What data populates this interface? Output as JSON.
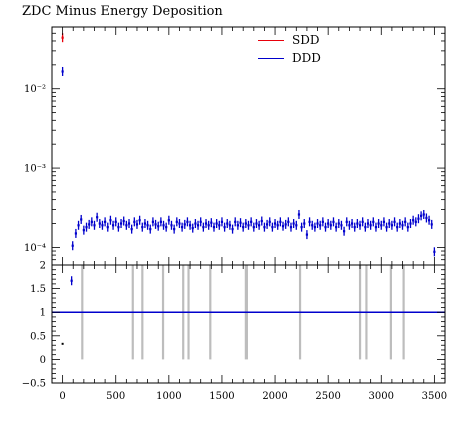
{
  "chart_data": {
    "title": "ZDC Minus Energy Deposition",
    "type": "scatter",
    "legend_placement": "top-right",
    "colors": {
      "sdd": "#e8000b",
      "ddd": "#0000cc",
      "ratio_band": "#bdbdbd",
      "ratio_line": "#0000cc"
    },
    "legend": [
      {
        "key": "sdd",
        "label": "SDD"
      },
      {
        "key": "ddd",
        "label": "DDD"
      }
    ],
    "xlim": [
      -100,
      3600
    ],
    "x_ticks": [
      0,
      500,
      1000,
      1500,
      2000,
      2500,
      3000,
      3500
    ],
    "x_tick_labels": [
      "0",
      "500",
      "1000",
      "1500",
      "2000",
      "2500",
      "3000",
      "3500"
    ],
    "main_panel": {
      "yscale": "log",
      "ylim": [
        6e-05,
        0.06
      ],
      "y_ticks": [
        0.0001,
        0.001,
        0.01
      ],
      "y_tick_labels": [
        "10⁻⁴",
        "10⁻³",
        "10⁻²"
      ],
      "series": [
        {
          "name": "SDD",
          "color_key": "sdd",
          "points": [
            [
              0,
              0.044
            ]
          ]
        },
        {
          "name": "DDD",
          "color_key": "ddd",
          "points": [
            [
              0,
              0.0165
            ],
            [
              85,
              3.8e-05
            ],
            [
              95,
              0.000105
            ],
            [
              125,
              0.00015
            ],
            [
              150,
              0.00019
            ],
            [
              175,
              0.000225
            ],
            [
              200,
              0.000165
            ],
            [
              225,
              0.00018
            ],
            [
              250,
              0.000195
            ],
            [
              275,
              0.00021
            ],
            [
              300,
              0.00019
            ],
            [
              325,
              0.00024
            ],
            [
              350,
              0.0002
            ],
            [
              375,
              0.00019
            ],
            [
              400,
              0.00021
            ],
            [
              425,
              0.00018
            ],
            [
              450,
              0.00022
            ],
            [
              475,
              0.00019
            ],
            [
              500,
              0.00021
            ],
            [
              525,
              0.00018
            ],
            [
              550,
              0.0002
            ],
            [
              575,
              0.000215
            ],
            [
              600,
              0.00019
            ],
            [
              625,
              0.0002
            ],
            [
              650,
              0.00017
            ],
            [
              675,
              0.00021
            ],
            [
              700,
              0.000195
            ],
            [
              725,
              0.00022
            ],
            [
              750,
              0.00018
            ],
            [
              775,
              0.0002
            ],
            [
              800,
              0.00019
            ],
            [
              825,
              0.00017
            ],
            [
              850,
              0.00021
            ],
            [
              875,
              0.000195
            ],
            [
              900,
              0.000185
            ],
            [
              925,
              0.00021
            ],
            [
              950,
              0.00019
            ],
            [
              975,
              0.00018
            ],
            [
              1000,
              0.00022
            ],
            [
              1025,
              0.00019
            ],
            [
              1050,
              0.00017
            ],
            [
              1075,
              0.00021
            ],
            [
              1100,
              0.0002
            ],
            [
              1125,
              0.00018
            ],
            [
              1150,
              0.000195
            ],
            [
              1175,
              0.00021
            ],
            [
              1200,
              0.00019
            ],
            [
              1225,
              0.000175
            ],
            [
              1250,
              0.0002
            ],
            [
              1275,
              0.00019
            ],
            [
              1300,
              0.00021
            ],
            [
              1325,
              0.00018
            ],
            [
              1350,
              0.0002
            ],
            [
              1375,
              0.00019
            ],
            [
              1400,
              0.000205
            ],
            [
              1425,
              0.00018
            ],
            [
              1450,
              0.0002
            ],
            [
              1475,
              0.00019
            ],
            [
              1500,
              0.00021
            ],
            [
              1525,
              0.00018
            ],
            [
              1550,
              0.0002
            ],
            [
              1575,
              0.00019
            ],
            [
              1600,
              0.00017
            ],
            [
              1625,
              0.00021
            ],
            [
              1650,
              0.00019
            ],
            [
              1675,
              0.000205
            ],
            [
              1700,
              0.00018
            ],
            [
              1725,
              0.0002
            ],
            [
              1750,
              0.00019
            ],
            [
              1775,
              0.00021
            ],
            [
              1800,
              0.00018
            ],
            [
              1825,
              0.0002
            ],
            [
              1850,
              0.00019
            ],
            [
              1875,
              0.000215
            ],
            [
              1900,
              0.00018
            ],
            [
              1925,
              0.000195
            ],
            [
              1950,
              0.00021
            ],
            [
              1975,
              0.00018
            ],
            [
              2000,
              0.0002
            ],
            [
              2025,
              0.00019
            ],
            [
              2050,
              0.00021
            ],
            [
              2075,
              0.000185
            ],
            [
              2100,
              0.000195
            ],
            [
              2125,
              0.00021
            ],
            [
              2150,
              0.00018
            ],
            [
              2175,
              0.0002
            ],
            [
              2200,
              0.00019
            ],
            [
              2225,
              0.00026
            ],
            [
              2250,
              0.00018
            ],
            [
              2275,
              0.0002
            ],
            [
              2300,
              0.000145
            ],
            [
              2325,
              0.00021
            ],
            [
              2350,
              0.00019
            ],
            [
              2375,
              0.00018
            ],
            [
              2400,
              0.0002
            ],
            [
              2425,
              0.00019
            ],
            [
              2450,
              0.00021
            ],
            [
              2475,
              0.00018
            ],
            [
              2500,
              0.0002
            ],
            [
              2525,
              0.00019
            ],
            [
              2550,
              0.00021
            ],
            [
              2575,
              0.00018
            ],
            [
              2600,
              0.0002
            ],
            [
              2625,
              0.00019
            ],
            [
              2650,
              0.00016
            ],
            [
              2675,
              0.00021
            ],
            [
              2700,
              0.00019
            ],
            [
              2725,
              0.0002
            ],
            [
              2750,
              0.00018
            ],
            [
              2775,
              0.0002
            ],
            [
              2800,
              0.00019
            ],
            [
              2825,
              0.00021
            ],
            [
              2850,
              0.00018
            ],
            [
              2875,
              0.0002
            ],
            [
              2900,
              0.00019
            ],
            [
              2925,
              0.00021
            ],
            [
              2950,
              0.00018
            ],
            [
              2975,
              0.0002
            ],
            [
              3000,
              0.00019
            ],
            [
              3025,
              0.00021
            ],
            [
              3050,
              0.00018
            ],
            [
              3075,
              0.0002
            ],
            [
              3100,
              0.00019
            ],
            [
              3125,
              0.00021
            ],
            [
              3150,
              0.00018
            ],
            [
              3175,
              0.0002
            ],
            [
              3200,
              0.00019
            ],
            [
              3225,
              0.00021
            ],
            [
              3250,
              0.00018
            ],
            [
              3275,
              0.0002
            ],
            [
              3300,
              0.00022
            ],
            [
              3325,
              0.00021
            ],
            [
              3350,
              0.00023
            ],
            [
              3375,
              0.00025
            ],
            [
              3400,
              0.00026
            ],
            [
              3425,
              0.000235
            ],
            [
              3450,
              0.00022
            ],
            [
              3475,
              0.000195
            ],
            [
              3500,
              8.8e-05
            ]
          ]
        }
      ]
    },
    "ratio_panel": {
      "ylim": [
        -0.5,
        2
      ],
      "y_ticks": [
        -0.5,
        0,
        0.5,
        1,
        1.5,
        2
      ],
      "y_tick_labels": [
        "−0.5",
        "0",
        "0.5",
        "1",
        "1.5",
        "2"
      ],
      "reference_line": 1,
      "ratio_points": [
        [
          0,
          0.33
        ]
      ],
      "band_ranges": [
        [
          175,
          185
        ],
        [
          650,
          660
        ],
        [
          740,
          750
        ],
        [
          935,
          945
        ],
        [
          1125,
          1135
        ],
        [
          1175,
          1185
        ],
        [
          1380,
          1390
        ],
        [
          1715,
          1745
        ],
        [
          2225,
          2235
        ],
        [
          2790,
          2800
        ],
        [
          2850,
          2860
        ],
        [
          3080,
          3090
        ],
        [
          3200,
          3210
        ]
      ]
    }
  }
}
